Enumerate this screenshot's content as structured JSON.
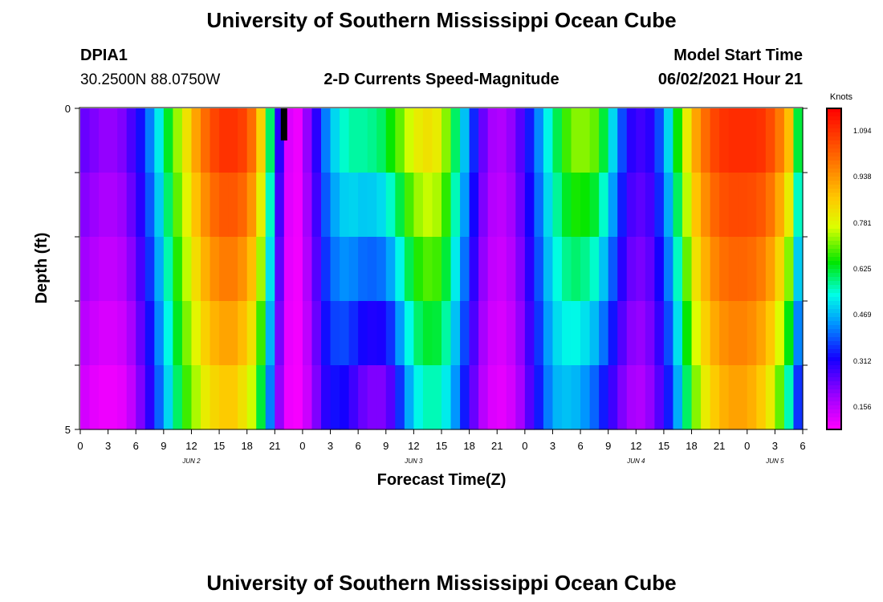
{
  "header": {
    "title": "University of Southern Mississippi Ocean Cube",
    "footer_title": "University of Southern Mississippi Ocean Cube",
    "station": "DPIA1",
    "location": "30.2500N  88.0750W",
    "chart_title": "2-D Currents Speed-Magnitude",
    "model_label": "Model Start Time",
    "model_time": "06/02/2021 Hour 21"
  },
  "chart_data": {
    "type": "heatmap",
    "title": "2-D Currents Speed-Magnitude",
    "xlabel": "Forecast Time(Z)",
    "ylabel": "Depth (ft)",
    "ylim": [
      0,
      5
    ],
    "y_ticks": [
      "0",
      "5"
    ],
    "x_tick_labels": [
      "0",
      "3",
      "6",
      "9",
      "12",
      "15",
      "18",
      "21",
      "0",
      "3",
      "6",
      "9",
      "12",
      "15",
      "18",
      "21",
      "0",
      "3",
      "6",
      "9",
      "12",
      "15",
      "18",
      "21",
      "0",
      "3",
      "6"
    ],
    "date_labels": [
      {
        "label": "JUN 2",
        "hour": 12
      },
      {
        "label": "JUN 3",
        "hour": 36
      },
      {
        "label": "JUN 4",
        "hour": 60
      },
      {
        "label": "JUN 5",
        "hour": 75
      }
    ],
    "x_start_hour": 0,
    "x_end_hour": 78,
    "columns": 78,
    "model_start_marker_hour": 21,
    "colorbar": {
      "unit": "Knots",
      "min": 0.08,
      "max": 1.17,
      "ticks": [
        0.156,
        0.312,
        0.469,
        0.625,
        0.781,
        0.938,
        1.094
      ],
      "tick_labels": [
        "0.156",
        "0.312",
        "0.469",
        "0.625",
        "0.781",
        "0.938",
        "1.094"
      ]
    },
    "depth_layers": 5,
    "speed_surface": [
      0.24,
      0.22,
      0.2,
      0.2,
      0.22,
      0.27,
      0.33,
      0.42,
      0.52,
      0.63,
      0.73,
      0.82,
      0.92,
      1.0,
      1.06,
      1.09,
      1.09,
      1.07,
      1.0,
      0.85,
      0.6,
      0.3,
      0.12,
      0.1,
      0.2,
      0.3,
      0.42,
      0.5,
      0.55,
      0.57,
      0.57,
      0.58,
      0.6,
      0.65,
      0.7,
      0.76,
      0.8,
      0.82,
      0.8,
      0.72,
      0.6,
      0.48,
      0.35,
      0.24,
      0.18,
      0.17,
      0.2,
      0.26,
      0.34,
      0.43,
      0.53,
      0.61,
      0.68,
      0.72,
      0.72,
      0.7,
      0.62,
      0.5,
      0.38,
      0.3,
      0.28,
      0.3,
      0.38,
      0.5,
      0.65,
      0.8,
      0.92,
      1.0,
      1.06,
      1.09,
      1.1,
      1.1,
      1.1,
      1.09,
      1.05,
      0.98,
      0.88,
      0.62
    ],
    "speed_bottom": [
      0.13,
      0.11,
      0.1,
      0.1,
      0.11,
      0.15,
      0.22,
      0.3,
      0.4,
      0.5,
      0.6,
      0.68,
      0.74,
      0.8,
      0.84,
      0.86,
      0.86,
      0.82,
      0.76,
      0.62,
      0.42,
      0.2,
      0.1,
      0.09,
      0.14,
      0.22,
      0.3,
      0.33,
      0.32,
      0.28,
      0.24,
      0.22,
      0.22,
      0.26,
      0.36,
      0.46,
      0.53,
      0.56,
      0.56,
      0.52,
      0.44,
      0.34,
      0.24,
      0.16,
      0.12,
      0.11,
      0.13,
      0.18,
      0.26,
      0.34,
      0.42,
      0.47,
      0.48,
      0.47,
      0.44,
      0.4,
      0.34,
      0.28,
      0.22,
      0.18,
      0.17,
      0.2,
      0.26,
      0.34,
      0.46,
      0.6,
      0.72,
      0.8,
      0.86,
      0.9,
      0.92,
      0.92,
      0.9,
      0.86,
      0.8,
      0.7,
      0.56,
      0.36
    ]
  }
}
